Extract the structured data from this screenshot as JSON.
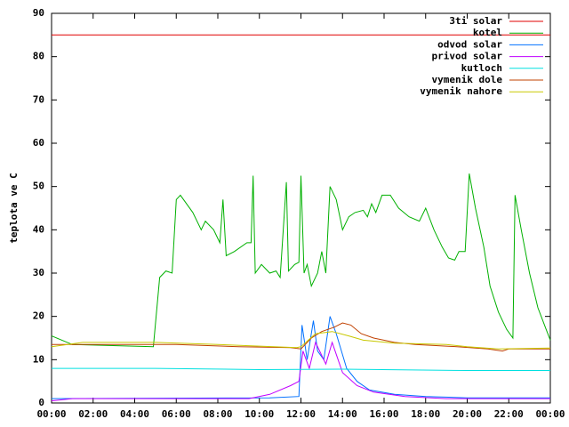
{
  "chart_data": {
    "type": "line",
    "y_label": "teplota ve C",
    "xlim": [
      0,
      24
    ],
    "xticks": [
      {
        "value": 0,
        "label": "00:00"
      },
      {
        "value": 2,
        "label": "02:00"
      },
      {
        "value": 4,
        "label": "04:00"
      },
      {
        "value": 6,
        "label": "06:00"
      },
      {
        "value": 8,
        "label": "08:00"
      },
      {
        "value": 10,
        "label": "10:00"
      },
      {
        "value": 12,
        "label": "12:00"
      },
      {
        "value": 14,
        "label": "14:00"
      },
      {
        "value": 16,
        "label": "16:00"
      },
      {
        "value": 18,
        "label": "18:00"
      },
      {
        "value": 20,
        "label": "20:00"
      },
      {
        "value": 22,
        "label": "22:00"
      },
      {
        "value": 24,
        "label": "00:00"
      }
    ],
    "ylim": [
      0,
      90
    ],
    "yticks": [
      0,
      10,
      20,
      30,
      40,
      50,
      60,
      70,
      80,
      90
    ],
    "legend": "top-right",
    "series": [
      {
        "name": "3ti solar",
        "color": "#e00000",
        "x": [
          0,
          24
        ],
        "values": [
          85,
          85
        ]
      },
      {
        "name": "kotel",
        "color": "#00b000",
        "x": [
          0,
          1,
          4.9,
          5.2,
          5.5,
          5.8,
          6.0,
          6.2,
          6.8,
          7.2,
          7.4,
          7.8,
          8.1,
          8.25,
          8.4,
          8.8,
          9.4,
          9.6,
          9.7,
          9.8,
          10.1,
          10.5,
          10.8,
          11.0,
          11.3,
          11.4,
          11.7,
          11.9,
          12.0,
          12.15,
          12.3,
          12.5,
          12.8,
          13.0,
          13.2,
          13.4,
          13.7,
          14.0,
          14.3,
          14.6,
          15.0,
          15.2,
          15.4,
          15.6,
          15.9,
          16.3,
          16.7,
          17.2,
          17.7,
          18.0,
          18.4,
          18.8,
          19.1,
          19.4,
          19.6,
          19.9,
          20.1,
          20.4,
          20.8,
          21.1,
          21.5,
          21.9,
          22.2,
          22.3,
          22.6,
          23.0,
          23.4,
          23.8,
          24
        ],
        "values": [
          15.5,
          13.5,
          13,
          29,
          30.5,
          30,
          47,
          48,
          44,
          40,
          42,
          40,
          37,
          47,
          34,
          35,
          37,
          37,
          52.5,
          30,
          32,
          30,
          30.5,
          29,
          51,
          30.5,
          32,
          32.5,
          52.5,
          30,
          32,
          27,
          30,
          35,
          30,
          50,
          47,
          40,
          43,
          44,
          44.5,
          43,
          46,
          44,
          48,
          48,
          45,
          43,
          42,
          45,
          40,
          36,
          33.5,
          33,
          35,
          35,
          53,
          45,
          36,
          27,
          21,
          17,
          15,
          48,
          40,
          30,
          22,
          17,
          14.5
        ]
      },
      {
        "name": "odvod solar",
        "color": "#0070ff",
        "x": [
          0,
          10.5,
          11.9,
          12.05,
          12.3,
          12.6,
          12.8,
          13.1,
          13.4,
          13.7,
          14.2,
          14.7,
          15.3,
          16.5,
          18,
          20,
          24
        ],
        "values": [
          1,
          1.2,
          1.5,
          18,
          10,
          19,
          12,
          10,
          20,
          16,
          8,
          5,
          3,
          2,
          1.5,
          1.2,
          1.2
        ]
      },
      {
        "name": "privod solar",
        "color": "#c000ff",
        "x": [
          0,
          1,
          9.5,
          10.5,
          11.5,
          11.9,
          12.1,
          12.4,
          12.7,
          13.2,
          13.5,
          14.0,
          14.7,
          15.5,
          17,
          19,
          24
        ],
        "values": [
          0.5,
          1,
          1,
          2,
          4,
          5,
          12,
          8,
          14,
          9,
          14,
          7,
          4,
          2.5,
          1.5,
          1,
          1
        ]
      },
      {
        "name": "kutloch",
        "color": "#00e0e0",
        "x": [
          0,
          5,
          10,
          14,
          20,
          24
        ],
        "values": [
          8,
          8,
          7.7,
          7.8,
          7.5,
          7.5
        ]
      },
      {
        "name": "vymenik dole",
        "color": "#c04000",
        "x": [
          0,
          2,
          6,
          9,
          11.5,
          12,
          12.5,
          13,
          13.6,
          14,
          14.4,
          14.9,
          15.5,
          16.5,
          17.5,
          19.5,
          21,
          21.7,
          22,
          24
        ],
        "values": [
          13.5,
          13.5,
          13.5,
          13,
          12.8,
          12.5,
          15,
          16.5,
          17.5,
          18.5,
          18,
          16,
          15,
          14,
          13.5,
          13,
          12.5,
          12,
          12.5,
          12.5
        ]
      },
      {
        "name": "vymenik nahore",
        "color": "#c8c800",
        "x": [
          0,
          1.5,
          5,
          8,
          11.8,
          12,
          12.7,
          13.5,
          14.3,
          15,
          16.5,
          19,
          20,
          21.5,
          24
        ],
        "values": [
          13,
          14,
          14,
          13.5,
          12.8,
          13,
          16,
          16.5,
          15.5,
          14.5,
          13.8,
          13.5,
          13,
          12.5,
          12.7
        ]
      }
    ]
  }
}
